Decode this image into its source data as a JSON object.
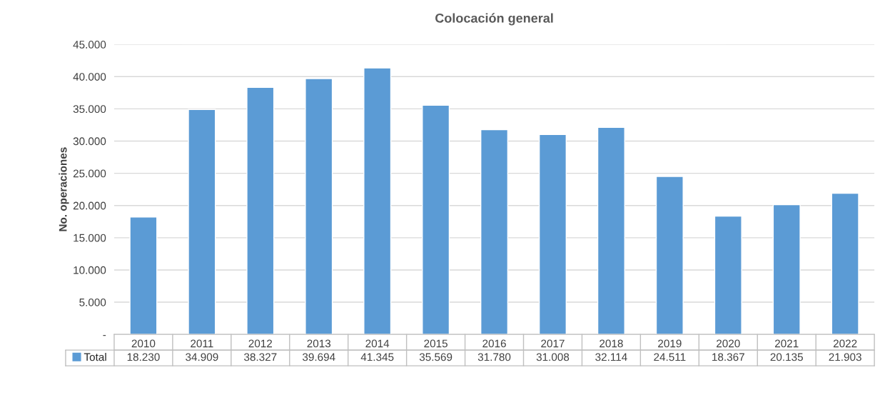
{
  "chart_data": {
    "type": "bar",
    "title": "Colocación general",
    "ylabel": "No. operaciones",
    "categories": [
      "2010",
      "2011",
      "2012",
      "2013",
      "2014",
      "2015",
      "2016",
      "2017",
      "2018",
      "2019",
      "2020",
      "2021",
      "2022"
    ],
    "series": [
      {
        "name": "Total",
        "color": "#5b9bd5",
        "values": [
          18230,
          34909,
          38327,
          39694,
          41345,
          35569,
          31780,
          31008,
          32114,
          24511,
          18367,
          20135,
          21903
        ],
        "value_labels": [
          "18.230",
          "34.909",
          "38.327",
          "39.694",
          "41.345",
          "35.569",
          "31.780",
          "31.008",
          "32.114",
          "24.511",
          "18.367",
          "20.135",
          "21.903"
        ]
      }
    ],
    "ylim": [
      0,
      45000
    ],
    "yticks": [
      {
        "value": 0,
        "label": "-"
      },
      {
        "value": 5000,
        "label": "5.000"
      },
      {
        "value": 10000,
        "label": "10.000"
      },
      {
        "value": 15000,
        "label": "15.000"
      },
      {
        "value": 20000,
        "label": "20.000"
      },
      {
        "value": 25000,
        "label": "25.000"
      },
      {
        "value": 30000,
        "label": "30.000"
      },
      {
        "value": 35000,
        "label": "35.000"
      },
      {
        "value": 40000,
        "label": "40.000"
      },
      {
        "value": 45000,
        "label": "45.000"
      }
    ],
    "grid": "y",
    "legend": "bottom"
  }
}
